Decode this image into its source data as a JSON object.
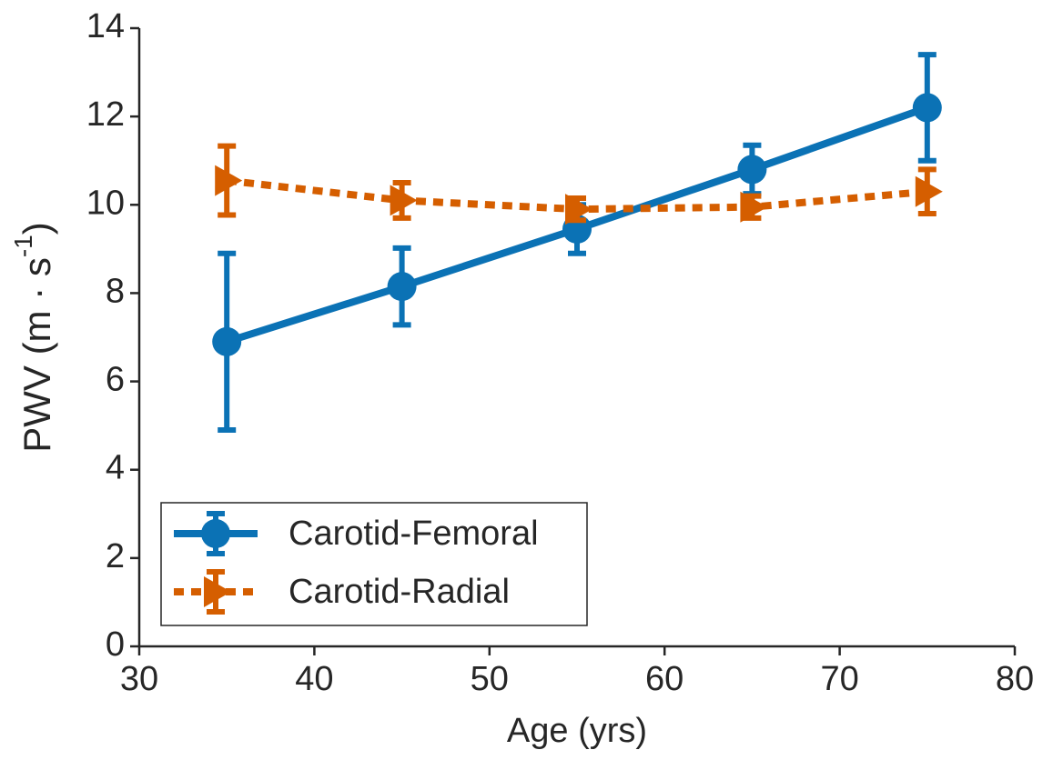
{
  "chart_data": {
    "type": "errorbar-line",
    "x_label": "Age (yrs)",
    "y_label": [
      "PWV (m · s",
      "-1",
      ")"
    ],
    "x": [
      35,
      45,
      55,
      65,
      75
    ],
    "series": [
      {
        "name": "Carotid-Femoral",
        "color": "#0b72b5",
        "marker": "circle",
        "linestyle": "solid",
        "values": [
          6.9,
          8.15,
          9.45,
          10.8,
          12.2
        ],
        "errors": [
          2.0,
          0.87,
          0.55,
          0.55,
          1.2
        ]
      },
      {
        "name": "Carotid-Radial",
        "color": "#d55e00",
        "marker": "triangle-right",
        "linestyle": "dotted",
        "values": [
          10.55,
          10.1,
          9.9,
          9.95,
          10.3
        ],
        "errors": [
          0.78,
          0.4,
          0.25,
          0.25,
          0.5
        ]
      }
    ],
    "xlim": [
      30,
      80
    ],
    "xticks": [
      30,
      40,
      50,
      60,
      70,
      80
    ],
    "ylim": [
      0,
      14
    ],
    "yticks": [
      0,
      2,
      4,
      6,
      8,
      10,
      12,
      14
    ],
    "grid": false,
    "legend": "lower left"
  }
}
